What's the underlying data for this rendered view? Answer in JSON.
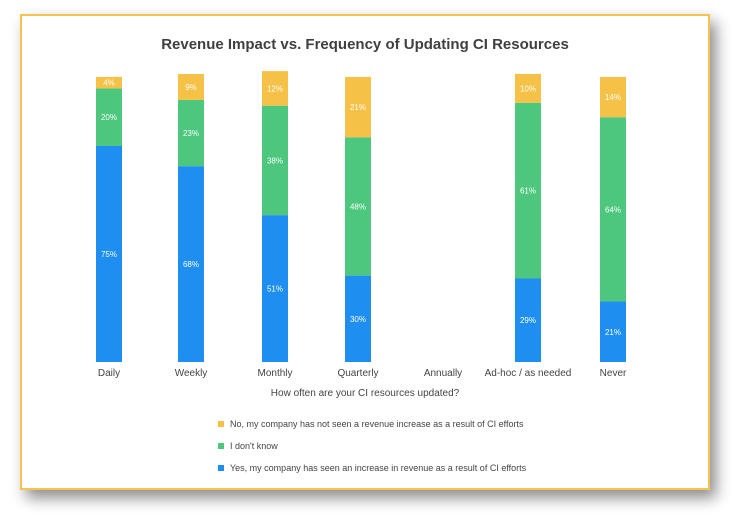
{
  "chart_data": {
    "type": "bar",
    "stacked": true,
    "title": "Revenue Impact vs. Frequency of Updating CI Resources",
    "xlabel": "How often are your CI resources updated?",
    "categories": [
      "Daily",
      "Weekly",
      "Monthly",
      "Quarterly",
      "Annually",
      "Ad-hoc / as needed",
      "Never"
    ],
    "ylim": [
      0,
      100
    ],
    "grid": false,
    "legend_position": "bottom",
    "series": [
      {
        "name": "Yes, my company has seen an increase in revenue as a result of CI efforts",
        "color": "#1e8ff0",
        "values": [
          75,
          68,
          51,
          30,
          null,
          29,
          21
        ],
        "labels": [
          "75%",
          "68%",
          "51%",
          "30%",
          "",
          "29%",
          "21%"
        ]
      },
      {
        "name": "I don't know",
        "color": "#4cc77d",
        "values": [
          20,
          23,
          38,
          48,
          null,
          61,
          64
        ],
        "labels": [
          "20%",
          "23%",
          "38%",
          "48%",
          "",
          "61%",
          "64%"
        ]
      },
      {
        "name": "No, my company has not seen a revenue increase as a result of CI efforts",
        "color": "#f5c146",
        "values": [
          4,
          9,
          12,
          21,
          null,
          10,
          14
        ],
        "labels": [
          "4%",
          "9%",
          "12%",
          "21%",
          "",
          "10%",
          "14%"
        ]
      }
    ]
  }
}
